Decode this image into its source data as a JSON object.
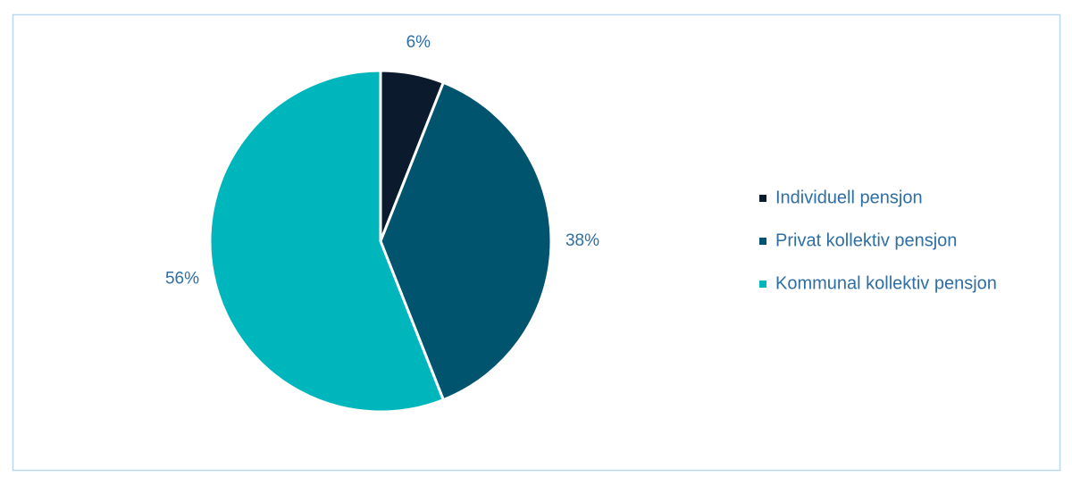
{
  "chart_data": {
    "type": "pie",
    "categories": [
      "Individuell pensjon",
      "Privat kollektiv pensjon",
      "Kommunal kollektiv pensjon"
    ],
    "values": [
      6,
      38,
      56
    ],
    "value_labels": [
      "6%",
      "38%",
      "56%"
    ],
    "colors": [
      "#0b1a2c",
      "#00546e",
      "#00b6bd"
    ],
    "legend": "right"
  }
}
